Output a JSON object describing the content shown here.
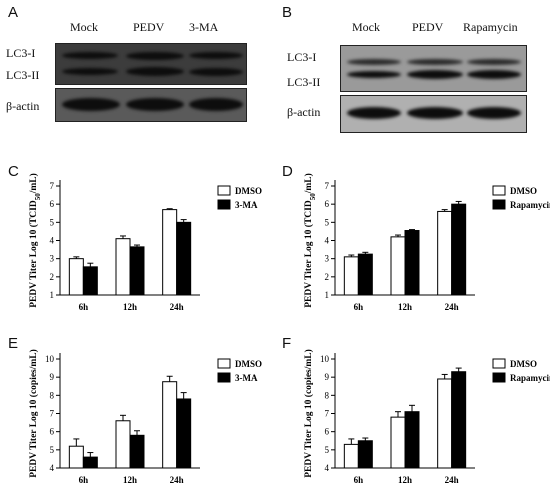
{
  "panels": {
    "A": {
      "letter": "A",
      "lanes": [
        "Mock",
        "PEDV",
        "3-MA"
      ],
      "rows": [
        "LC3-I",
        "LC3-II",
        "β-actin"
      ]
    },
    "B": {
      "letter": "B",
      "lanes": [
        "Mock",
        "PEDV",
        "Rapamycin"
      ],
      "rows": [
        "LC3-I",
        "LC3-II",
        "β-actin"
      ]
    }
  },
  "chart_data": [
    {
      "letter": "C",
      "type": "bar",
      "categories": [
        "6h",
        "12h",
        "24h"
      ],
      "series": [
        {
          "name": "DMSO",
          "values": [
            3.0,
            4.1,
            5.7
          ],
          "errors": [
            0.1,
            0.15,
            0.05
          ],
          "color": "#ffffff"
        },
        {
          "name": "3-MA",
          "values": [
            2.55,
            3.65,
            5.0
          ],
          "errors": [
            0.2,
            0.1,
            0.15
          ],
          "color": "#000000"
        }
      ],
      "ylabel": "PEDV Titer Log 10 (TCID50/mL)",
      "ylim": [
        1,
        7
      ],
      "yticks": [
        "1",
        "2",
        "3",
        "4",
        "5",
        "6",
        "7"
      ]
    },
    {
      "letter": "D",
      "type": "bar",
      "categories": [
        "6h",
        "12h",
        "24h"
      ],
      "series": [
        {
          "name": "DMSO",
          "values": [
            3.1,
            4.2,
            5.6
          ],
          "errors": [
            0.1,
            0.1,
            0.1
          ],
          "color": "#ffffff"
        },
        {
          "name": "Rapamycin",
          "values": [
            3.25,
            4.55,
            6.0
          ],
          "errors": [
            0.1,
            0.05,
            0.15
          ],
          "color": "#000000"
        }
      ],
      "ylabel": "PEDV Titer Log 10 (TCID50/mL)",
      "ylim": [
        1,
        7
      ],
      "yticks": [
        "1",
        "2",
        "3",
        "4",
        "5",
        "6",
        "7"
      ]
    },
    {
      "letter": "E",
      "type": "bar",
      "categories": [
        "6h",
        "12h",
        "24h"
      ],
      "series": [
        {
          "name": "DMSO",
          "values": [
            5.2,
            6.6,
            8.75
          ],
          "errors": [
            0.4,
            0.3,
            0.3
          ],
          "color": "#ffffff"
        },
        {
          "name": "3-MA",
          "values": [
            4.6,
            5.8,
            7.8
          ],
          "errors": [
            0.25,
            0.25,
            0.35
          ],
          "color": "#000000"
        }
      ],
      "ylabel": "PEDV Titer Log 10 (copies/mL)",
      "ylim": [
        4,
        10
      ],
      "yticks": [
        "4",
        "5",
        "6",
        "7",
        "8",
        "9",
        "10"
      ]
    },
    {
      "letter": "F",
      "type": "bar",
      "categories": [
        "6h",
        "12h",
        "24h"
      ],
      "series": [
        {
          "name": "DMSO",
          "values": [
            5.3,
            6.8,
            8.9
          ],
          "errors": [
            0.3,
            0.3,
            0.25
          ],
          "color": "#ffffff"
        },
        {
          "name": "Rapamycin",
          "values": [
            5.5,
            7.1,
            9.3
          ],
          "errors": [
            0.15,
            0.35,
            0.2
          ],
          "color": "#000000"
        }
      ],
      "ylabel": "PEDV Titer Log 10 (copies/mL)",
      "ylim": [
        4,
        10
      ],
      "yticks": [
        "4",
        "5",
        "6",
        "7",
        "8",
        "9",
        "10"
      ]
    }
  ]
}
